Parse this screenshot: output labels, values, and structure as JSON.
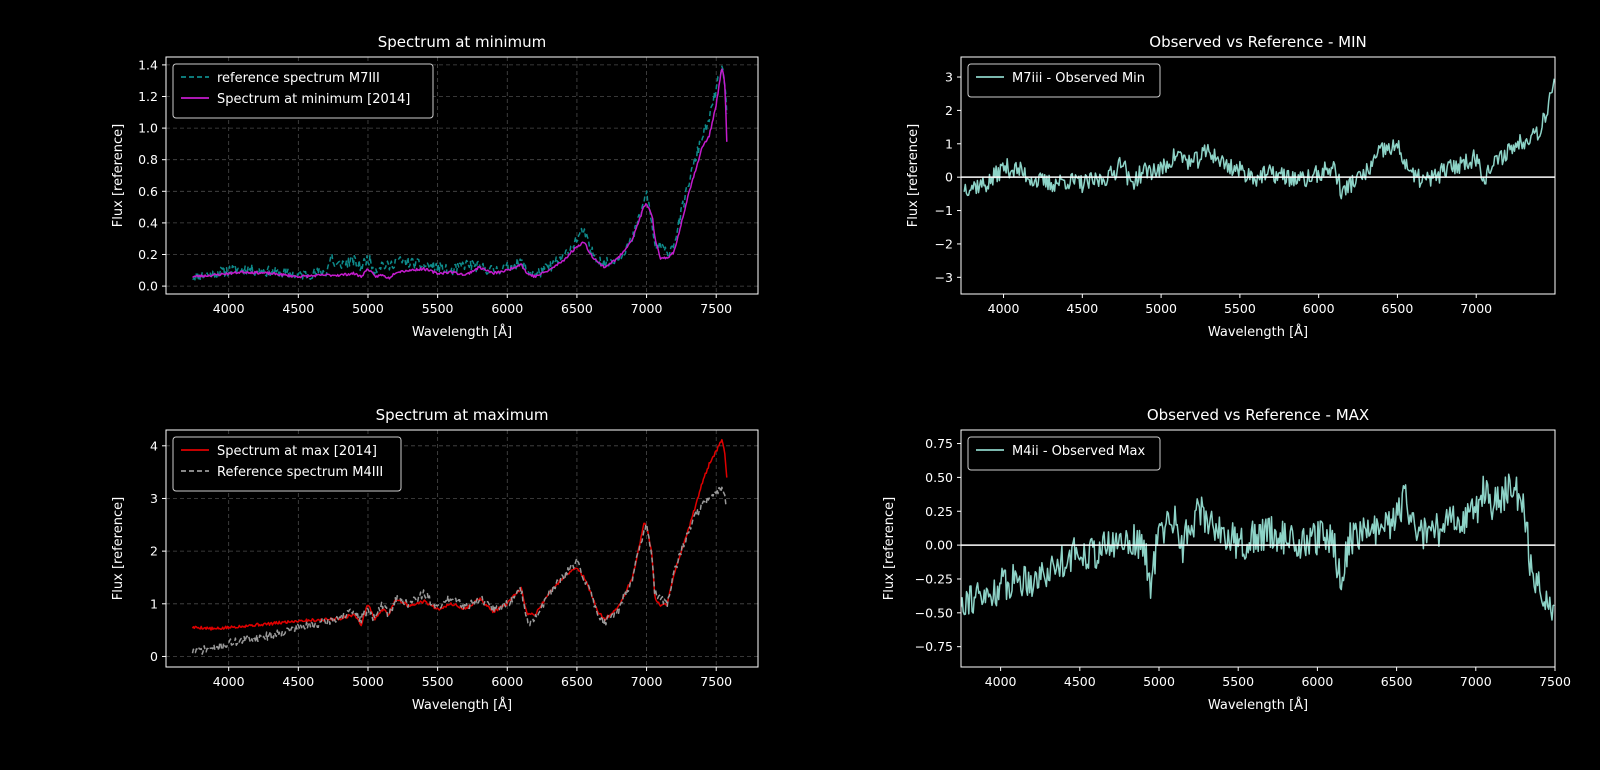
{
  "figure": {
    "background": "#000000",
    "foreground": "#ffffff"
  },
  "chart_data": [
    {
      "id": "p1",
      "type": "line",
      "title": "Spectrum at minimum",
      "xlabel": "Wavelength [Å]",
      "ylabel": "Flux [reference]",
      "xlim": [
        3550,
        7800
      ],
      "ylim": [
        -0.05,
        1.45
      ],
      "xticks": [
        4000,
        4500,
        5000,
        5500,
        6000,
        6500,
        7000,
        7500
      ],
      "xtick_labels": [
        "4000",
        "4500",
        "5000",
        "5500",
        "6000",
        "6500",
        "7000",
        "7500"
      ],
      "yticks": [
        0.0,
        0.2,
        0.4,
        0.6,
        0.8,
        1.0,
        1.2,
        1.4
      ],
      "ytick_labels": [
        "0.0",
        "0.2",
        "0.4",
        "0.6",
        "0.8",
        "1.0",
        "1.2",
        "1.4"
      ],
      "grid": true,
      "legend_position": "upper-left",
      "series": [
        {
          "name": "reference spectrum  M7III",
          "color": "#0e8a8a",
          "dash": "dashed",
          "noise": 0.035,
          "seed": 11,
          "x": [
            3740,
            3900,
            4000,
            4100,
            4300,
            4500,
            4700,
            4740,
            4760,
            4800,
            4900,
            4950,
            5000,
            5050,
            5100,
            5150,
            5200,
            5300,
            5400,
            5500,
            5600,
            5700,
            5800,
            5900,
            6000,
            6100,
            6150,
            6200,
            6300,
            6400,
            6500,
            6550,
            6600,
            6650,
            6700,
            6800,
            6900,
            6980,
            7000,
            7040,
            7060,
            7100,
            7150,
            7200,
            7300,
            7400,
            7450,
            7500,
            7540,
            7560,
            7580
          ],
          "y": [
            0.06,
            0.08,
            0.1,
            0.11,
            0.09,
            0.07,
            0.09,
            0.2,
            0.12,
            0.14,
            0.16,
            0.12,
            0.18,
            0.1,
            0.14,
            0.12,
            0.16,
            0.15,
            0.13,
            0.12,
            0.09,
            0.14,
            0.12,
            0.1,
            0.12,
            0.15,
            0.1,
            0.07,
            0.12,
            0.18,
            0.3,
            0.35,
            0.22,
            0.18,
            0.14,
            0.18,
            0.3,
            0.52,
            0.6,
            0.38,
            0.25,
            0.25,
            0.2,
            0.28,
            0.65,
            0.95,
            1.05,
            1.25,
            1.38,
            1.3,
            1.05
          ]
        },
        {
          "name": "Spectrum at minimum [2014]",
          "color": "#c41ccd",
          "dash": "solid",
          "noise": 0.008,
          "seed": 23,
          "x": [
            3740,
            3900,
            4000,
            4100,
            4300,
            4500,
            4700,
            4800,
            4900,
            4950,
            5000,
            5050,
            5100,
            5150,
            5200,
            5300,
            5400,
            5500,
            5600,
            5700,
            5800,
            5900,
            6000,
            6100,
            6140,
            6200,
            6300,
            6400,
            6500,
            6550,
            6600,
            6650,
            6700,
            6800,
            6900,
            6980,
            7000,
            7040,
            7060,
            7100,
            7150,
            7200,
            7300,
            7400,
            7450,
            7500,
            7540,
            7560,
            7575,
            7580
          ],
          "y": [
            0.06,
            0.07,
            0.08,
            0.09,
            0.08,
            0.06,
            0.07,
            0.07,
            0.08,
            0.06,
            0.11,
            0.06,
            0.07,
            0.05,
            0.09,
            0.1,
            0.11,
            0.08,
            0.09,
            0.07,
            0.12,
            0.08,
            0.1,
            0.14,
            0.08,
            0.06,
            0.1,
            0.16,
            0.25,
            0.28,
            0.2,
            0.15,
            0.12,
            0.18,
            0.3,
            0.5,
            0.52,
            0.45,
            0.3,
            0.17,
            0.18,
            0.22,
            0.58,
            0.88,
            0.95,
            1.15,
            1.38,
            1.3,
            1.0,
            0.56
          ]
        }
      ]
    },
    {
      "id": "p2",
      "type": "line",
      "title": "Observed vs Reference - MIN",
      "xlabel": "Wavelength [Å]",
      "ylabel": "Flux [reference]",
      "xlim": [
        3730,
        7500
      ],
      "ylim": [
        -3.5,
        3.6
      ],
      "xticks": [
        4000,
        4500,
        5000,
        5500,
        6000,
        6500,
        7000
      ],
      "xtick_labels": [
        "4000",
        "4500",
        "5000",
        "5500",
        "6000",
        "6500",
        "7000"
      ],
      "yticks": [
        -3,
        -2,
        -1,
        0,
        1,
        2,
        3
      ],
      "ytick_labels": [
        "−3",
        "−2",
        "−1",
        "0",
        "1",
        "2",
        "3"
      ],
      "grid": false,
      "hline": 0,
      "legend_position": "upper-left",
      "series": [
        {
          "name": "M7iii - Observed Min",
          "color": "#8dd3c7",
          "dash": "solid",
          "noise": 0.28,
          "seed": 37,
          "x": [
            3750,
            3900,
            4000,
            4100,
            4200,
            4300,
            4400,
            4500,
            4600,
            4700,
            4750,
            4800,
            4900,
            5000,
            5100,
            5200,
            5300,
            5400,
            5500,
            5600,
            5700,
            5800,
            5900,
            6000,
            6100,
            6150,
            6200,
            6300,
            6400,
            6500,
            6600,
            6700,
            6800,
            6900,
            7000,
            7050,
            7100,
            7200,
            7300,
            7350,
            7400,
            7450,
            7480,
            7500
          ],
          "y": [
            -0.3,
            -0.2,
            0.3,
            0.2,
            -0.1,
            -0.2,
            -0.1,
            -0.2,
            -0.1,
            0.1,
            0.6,
            -0.2,
            0.2,
            0.2,
            0.7,
            0.4,
            0.8,
            0.4,
            0.2,
            0.0,
            0.1,
            0.0,
            -0.1,
            0.1,
            0.3,
            -0.5,
            -0.2,
            0.1,
            0.8,
            0.9,
            0.0,
            -0.1,
            0.2,
            0.4,
            0.6,
            0.0,
            0.3,
            0.8,
            1.1,
            1.3,
            1.4,
            2.0,
            2.8,
            3.0
          ]
        }
      ]
    },
    {
      "id": "p3",
      "type": "line",
      "title": "Spectrum at maximum",
      "xlabel": "Wavelength [Å]",
      "ylabel": "Flux [reference]",
      "xlim": [
        3550,
        7800
      ],
      "ylim": [
        -0.2,
        4.3
      ],
      "xticks": [
        4000,
        4500,
        5000,
        5500,
        6000,
        6500,
        7000,
        7500
      ],
      "xtick_labels": [
        "4000",
        "4500",
        "5000",
        "5500",
        "6000",
        "6500",
        "7000",
        "7500"
      ],
      "yticks": [
        0,
        1,
        2,
        3,
        4
      ],
      "ytick_labels": [
        "0",
        "1",
        "2",
        "3",
        "4"
      ],
      "grid": true,
      "legend_position": "upper-left",
      "series": [
        {
          "name": "Spectrum at max [2014]",
          "color": "#e00000",
          "dash": "solid",
          "noise": 0.03,
          "seed": 5,
          "x": [
            3740,
            3800,
            3900,
            4000,
            4100,
            4300,
            4500,
            4700,
            4800,
            4900,
            4950,
            5000,
            5050,
            5100,
            5150,
            5200,
            5300,
            5400,
            5500,
            5600,
            5700,
            5800,
            5900,
            6000,
            6100,
            6140,
            6200,
            6300,
            6400,
            6500,
            6550,
            6600,
            6650,
            6700,
            6800,
            6900,
            6980,
            7000,
            7040,
            7060,
            7100,
            7150,
            7200,
            7300,
            7400,
            7450,
            7500,
            7540,
            7560,
            7580
          ],
          "y": [
            0.55,
            0.55,
            0.52,
            0.55,
            0.58,
            0.62,
            0.68,
            0.7,
            0.72,
            0.8,
            0.6,
            1.0,
            0.7,
            0.9,
            0.8,
            1.1,
            0.95,
            1.05,
            0.9,
            1.0,
            0.9,
            1.1,
            0.85,
            1.0,
            1.3,
            0.8,
            0.8,
            1.2,
            1.5,
            1.7,
            1.5,
            1.2,
            0.85,
            0.7,
            0.95,
            1.5,
            2.5,
            2.5,
            1.9,
            1.1,
            0.95,
            1.0,
            1.6,
            2.4,
            3.3,
            3.65,
            3.9,
            4.1,
            3.9,
            3.25
          ]
        },
        {
          "name": "Reference spectrum M4III",
          "color": "#9a9a9a",
          "dash": "dashed",
          "noise": 0.08,
          "seed": 71,
          "x": [
            3740,
            3800,
            3900,
            4000,
            4100,
            4300,
            4500,
            4700,
            4800,
            4900,
            4950,
            5000,
            5050,
            5100,
            5150,
            5200,
            5300,
            5400,
            5500,
            5600,
            5700,
            5800,
            5900,
            6000,
            6100,
            6150,
            6200,
            6300,
            6400,
            6500,
            6550,
            6600,
            6650,
            6700,
            6800,
            6900,
            6980,
            7000,
            7040,
            7060,
            7100,
            7150,
            7200,
            7300,
            7400,
            7450,
            7500,
            7540,
            7560,
            7580
          ],
          "y": [
            0.1,
            0.12,
            0.15,
            0.25,
            0.3,
            0.4,
            0.55,
            0.65,
            0.75,
            0.85,
            0.7,
            0.9,
            0.7,
            1.0,
            0.8,
            1.1,
            1.0,
            1.2,
            0.9,
            1.15,
            0.95,
            1.1,
            0.9,
            1.0,
            1.25,
            0.65,
            0.7,
            1.2,
            1.5,
            1.8,
            1.5,
            1.2,
            0.8,
            0.65,
            0.9,
            1.5,
            2.4,
            2.5,
            1.8,
            1.2,
            1.1,
            1.0,
            1.6,
            2.4,
            2.9,
            3.0,
            3.1,
            3.2,
            3.1,
            2.8
          ]
        }
      ]
    },
    {
      "id": "p4",
      "type": "line",
      "title": "Observed vs Reference - MAX",
      "xlabel": "Wavelength [Å]",
      "ylabel": "Flux [reference]",
      "xlim": [
        3750,
        7500
      ],
      "ylim": [
        -0.9,
        0.85
      ],
      "xticks": [
        4000,
        4500,
        5000,
        5500,
        6000,
        6500,
        7000,
        7500
      ],
      "xtick_labels": [
        "4000",
        "4500",
        "5000",
        "5500",
        "6000",
        "6500",
        "7000",
        "7500"
      ],
      "yticks": [
        -0.75,
        -0.5,
        -0.25,
        0.0,
        0.25,
        0.5,
        0.75
      ],
      "ytick_labels": [
        "−0.75",
        "−0.50",
        "−0.25",
        "0.00",
        "0.25",
        "0.50",
        "0.75"
      ],
      "grid": false,
      "hline": 0,
      "legend_position": "upper-left",
      "series": [
        {
          "name": "M4ii - Observed Max",
          "color": "#8dd3c7",
          "dash": "solid",
          "noise": 0.13,
          "seed": 91,
          "x": [
            3750,
            3800,
            3900,
            4000,
            4100,
            4200,
            4300,
            4400,
            4500,
            4600,
            4700,
            4800,
            4900,
            4950,
            5000,
            5100,
            5150,
            5200,
            5250,
            5300,
            5400,
            5500,
            5600,
            5700,
            5800,
            5900,
            6000,
            6100,
            6150,
            6200,
            6300,
            6400,
            6500,
            6550,
            6600,
            6700,
            6800,
            6900,
            7000,
            7050,
            7100,
            7200,
            7300,
            7350,
            7400,
            7450,
            7500
          ],
          "y": [
            -0.4,
            -0.38,
            -0.4,
            -0.3,
            -0.25,
            -0.25,
            -0.2,
            -0.1,
            -0.05,
            -0.05,
            0.0,
            0.05,
            0.0,
            -0.3,
            0.1,
            0.2,
            0.0,
            0.15,
            0.25,
            0.2,
            0.1,
            0.0,
            0.05,
            0.1,
            0.05,
            0.0,
            0.05,
            0.05,
            -0.3,
            0.05,
            0.1,
            0.1,
            0.2,
            0.35,
            0.15,
            0.05,
            0.15,
            0.2,
            0.25,
            0.4,
            0.3,
            0.4,
            0.35,
            -0.2,
            -0.3,
            -0.4,
            -0.45
          ]
        }
      ]
    }
  ]
}
